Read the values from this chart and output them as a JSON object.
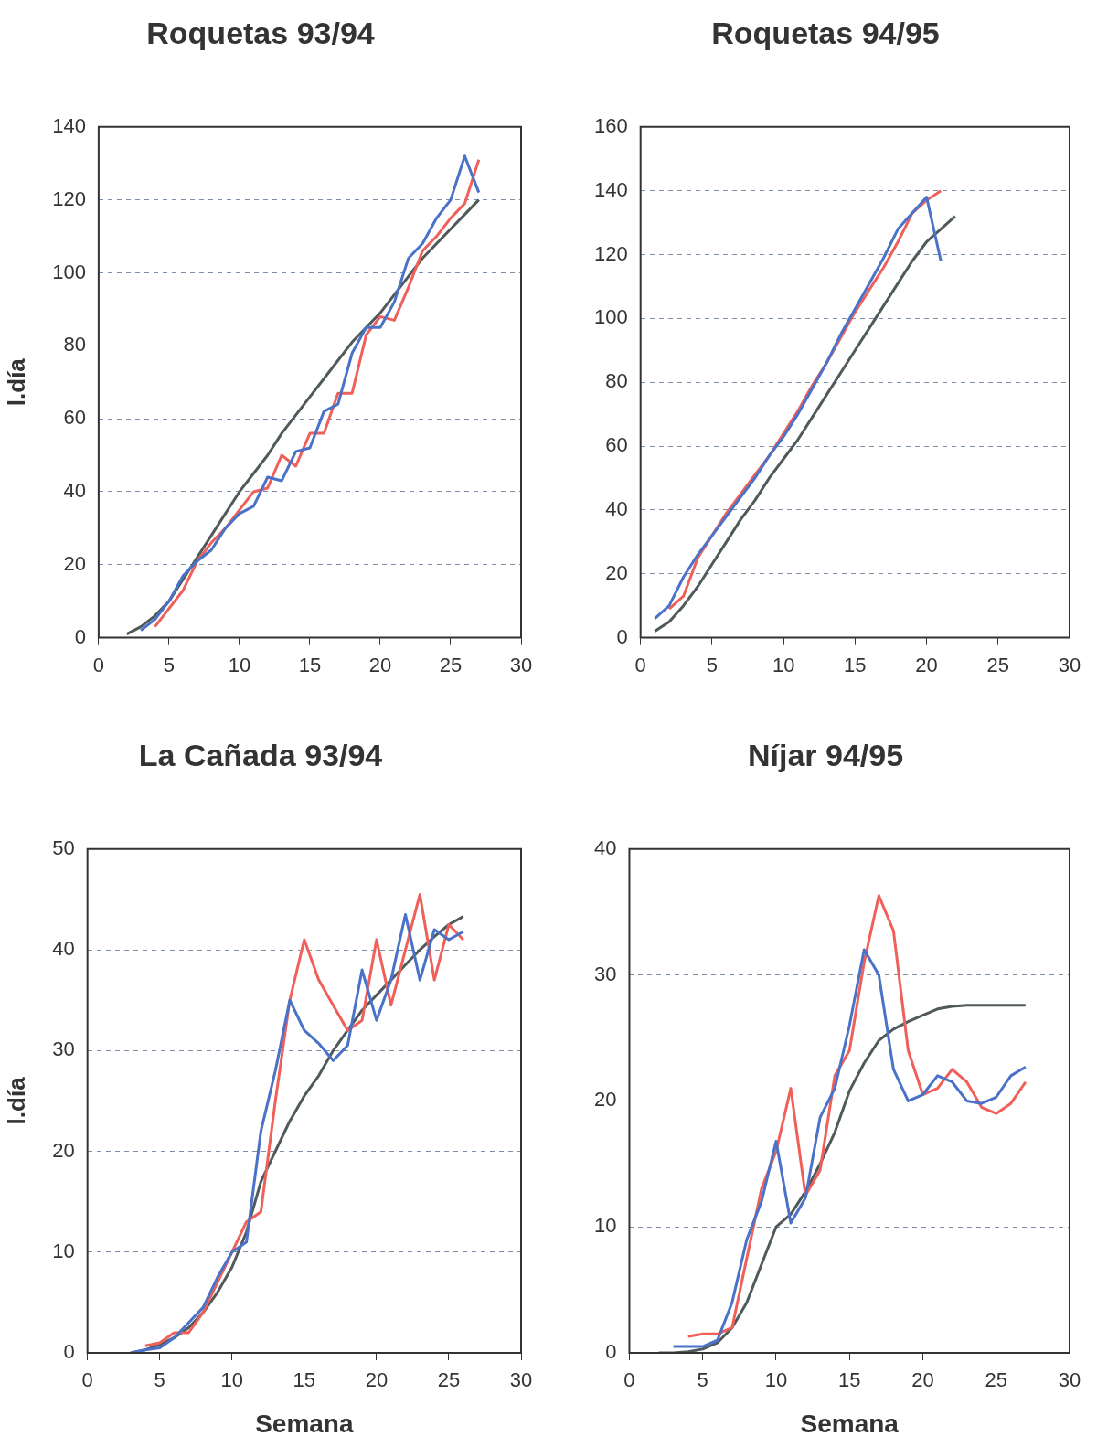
{
  "chart_data": [
    {
      "type": "line",
      "title": "Roquetas 93/94",
      "ylabel": "l.día",
      "xlim": [
        0,
        30
      ],
      "xticks": [
        0,
        5,
        10,
        15,
        20,
        25,
        30
      ],
      "ylim": [
        0,
        140
      ],
      "yticks": [
        0,
        20,
        40,
        60,
        80,
        100,
        120,
        140
      ],
      "grid": "y",
      "marker": "none",
      "series": [
        {
          "color": "#4a72c8",
          "x": [
            3,
            4,
            5,
            6,
            7,
            8,
            9,
            10,
            11,
            12,
            13,
            14,
            15,
            16,
            17,
            18,
            19,
            20,
            21,
            22,
            23,
            24,
            25,
            26,
            27
          ],
          "values": [
            2,
            5,
            10,
            17,
            21,
            24,
            30,
            34,
            36,
            44,
            43,
            51,
            52,
            62,
            64,
            78,
            85,
            85,
            92,
            104,
            108,
            115,
            120,
            132,
            122
          ]
        },
        {
          "color": "#f0605a",
          "x": [
            4,
            5,
            6,
            7,
            8,
            9,
            10,
            11,
            12,
            13,
            14,
            15,
            16,
            17,
            18,
            19,
            20,
            21,
            22,
            23,
            24,
            25,
            26,
            27
          ],
          "values": [
            3,
            8,
            13,
            21,
            26,
            30,
            35,
            40,
            41,
            50,
            47,
            56,
            56,
            67,
            67,
            83,
            88,
            87,
            96,
            106,
            110,
            115,
            119,
            131
          ]
        },
        {
          "color": "#505a5a",
          "x": [
            2,
            3,
            4,
            5,
            6,
            7,
            8,
            9,
            10,
            11,
            12,
            13,
            14,
            15,
            16,
            17,
            18,
            19,
            20,
            21,
            22,
            23,
            24,
            25,
            26,
            27
          ],
          "values": [
            1,
            3,
            6,
            10,
            16,
            22,
            28,
            34,
            40,
            45,
            50,
            56,
            61,
            66,
            71,
            76,
            81,
            85,
            89,
            94,
            99,
            104,
            108,
            112,
            116,
            120
          ]
        }
      ]
    },
    {
      "type": "line",
      "title": "Roquetas 94/95",
      "xlim": [
        0,
        30
      ],
      "xticks": [
        0,
        5,
        10,
        15,
        20,
        25,
        30
      ],
      "ylim": [
        0,
        160
      ],
      "yticks": [
        0,
        20,
        40,
        60,
        80,
        100,
        120,
        140,
        160
      ],
      "grid": "y",
      "marker": "none",
      "series": [
        {
          "color": "#4a72c8",
          "x": [
            1,
            2,
            3,
            4,
            5,
            6,
            7,
            8,
            9,
            10,
            11,
            12,
            13,
            14,
            15,
            16,
            17,
            18,
            19,
            20,
            21
          ],
          "values": [
            6,
            10,
            19,
            26,
            32,
            38,
            44,
            50,
            57,
            63,
            70,
            78,
            86,
            95,
            103,
            111,
            119,
            128,
            133,
            138,
            118
          ]
        },
        {
          "color": "#f0605a",
          "x": [
            2,
            3,
            4,
            5,
            6,
            7,
            8,
            9,
            10,
            11,
            12,
            13,
            14,
            15,
            16,
            17,
            18,
            19,
            20,
            21
          ],
          "values": [
            9,
            13,
            25,
            32,
            39,
            45,
            51,
            57,
            64,
            71,
            79,
            86,
            94,
            102,
            109,
            116,
            124,
            133,
            137,
            140
          ]
        },
        {
          "color": "#505a5a",
          "x": [
            1,
            2,
            3,
            4,
            5,
            6,
            7,
            8,
            9,
            10,
            11,
            12,
            13,
            14,
            15,
            16,
            17,
            18,
            19,
            20,
            21,
            22
          ],
          "values": [
            2,
            5,
            10,
            16,
            23,
            30,
            37,
            43,
            50,
            56,
            62,
            69,
            76,
            83,
            90,
            97,
            104,
            111,
            118,
            124,
            128,
            132
          ]
        }
      ]
    },
    {
      "type": "line",
      "title": "La Cañada 93/94",
      "ylabel": "l.día",
      "xlabel": "Semana",
      "xlim": [
        0,
        30
      ],
      "xticks": [
        0,
        5,
        10,
        15,
        20,
        25,
        30
      ],
      "ylim": [
        0,
        50
      ],
      "yticks": [
        0,
        10,
        20,
        30,
        40,
        50
      ],
      "grid": "y",
      "marker": "none",
      "series": [
        {
          "color": "#4a72c8",
          "x": [
            3,
            4,
            5,
            6,
            7,
            8,
            9,
            10,
            11,
            12,
            13,
            14,
            15,
            16,
            17,
            18,
            19,
            20,
            21,
            22,
            23,
            24,
            25,
            26
          ],
          "values": [
            0,
            0.3,
            0.5,
            1.5,
            3,
            4.5,
            7.5,
            10,
            11,
            22,
            28,
            35,
            32,
            30.7,
            29,
            30.5,
            38,
            33,
            37,
            43.5,
            37,
            42,
            41,
            41.8
          ]
        },
        {
          "color": "#f0605a",
          "x": [
            4,
            5,
            6,
            7,
            8,
            9,
            10,
            11,
            12,
            13,
            14,
            15,
            16,
            17,
            18,
            19,
            20,
            21,
            22,
            23,
            24,
            25,
            26
          ],
          "values": [
            0.7,
            1,
            2,
            2,
            4,
            7,
            10,
            13,
            14,
            25,
            35,
            41,
            37,
            34.5,
            32,
            33,
            41,
            34.5,
            40,
            45.5,
            37,
            42.5,
            41
          ]
        },
        {
          "color": "#505a5a",
          "x": [
            3,
            4,
            5,
            6,
            7,
            8,
            9,
            10,
            11,
            12,
            13,
            14,
            15,
            16,
            17,
            18,
            19,
            20,
            21,
            22,
            23,
            24,
            25,
            26
          ],
          "values": [
            0,
            0.3,
            0.8,
            1.5,
            2.5,
            4,
            6,
            8.5,
            12,
            17,
            20,
            23,
            25.5,
            27.5,
            30,
            32,
            34,
            35.5,
            37,
            38.5,
            40,
            41.3,
            42.5,
            43.3
          ]
        }
      ]
    },
    {
      "type": "line",
      "title": "Níjar 94/95",
      "xlabel": "Semana",
      "xlim": [
        0,
        30
      ],
      "xticks": [
        0,
        5,
        10,
        15,
        20,
        25,
        30
      ],
      "ylim": [
        0,
        40
      ],
      "yticks": [
        0,
        10,
        20,
        30,
        40
      ],
      "grid": "y",
      "marker": "none",
      "series": [
        {
          "color": "#4a72c8",
          "x": [
            3,
            4,
            5,
            6,
            7,
            8,
            9,
            10,
            11,
            12,
            13,
            14,
            15,
            16,
            17,
            18,
            19,
            20,
            21,
            22,
            23,
            24,
            25,
            26,
            27
          ],
          "values": [
            0.5,
            0.5,
            0.5,
            1,
            4,
            9,
            12,
            16.8,
            10.3,
            12.3,
            18.7,
            21,
            26,
            32,
            30,
            22.5,
            20,
            20.5,
            22,
            21.5,
            20,
            19.8,
            20.3,
            22,
            22.7
          ]
        },
        {
          "color": "#f0605a",
          "x": [
            4,
            5,
            6,
            7,
            8,
            9,
            10,
            11,
            12,
            13,
            14,
            15,
            16,
            17,
            18,
            19,
            20,
            21,
            22,
            23,
            24,
            25,
            26,
            27
          ],
          "values": [
            1.3,
            1.5,
            1.5,
            2,
            7.5,
            13,
            16,
            21,
            12.5,
            14.5,
            22,
            24,
            31,
            36.3,
            33.5,
            24,
            20.5,
            21,
            22.5,
            21.5,
            19.5,
            19,
            19.8,
            21.5
          ]
        },
        {
          "color": "#505a5a",
          "x": [
            2,
            3,
            4,
            5,
            6,
            7,
            8,
            9,
            10,
            11,
            12,
            13,
            14,
            15,
            16,
            17,
            18,
            19,
            20,
            21,
            22,
            23,
            24,
            25,
            26,
            27
          ],
          "values": [
            0,
            0,
            0.1,
            0.3,
            0.8,
            2,
            4,
            7,
            10,
            11,
            12.8,
            15,
            17.5,
            20.8,
            23,
            24.8,
            25.7,
            26.3,
            26.8,
            27.3,
            27.5,
            27.6,
            27.6,
            27.6,
            27.6,
            27.6
          ]
        }
      ]
    }
  ]
}
